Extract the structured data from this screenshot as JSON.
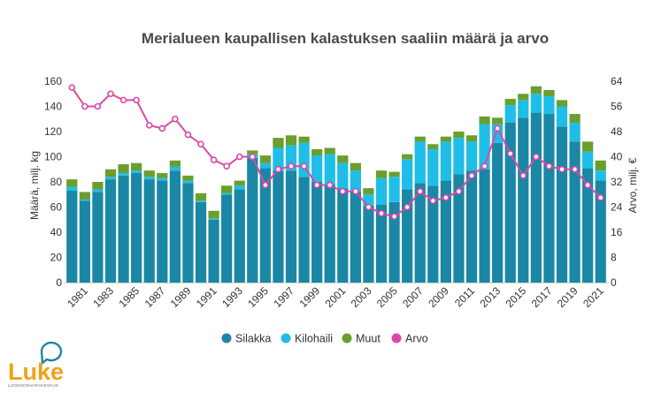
{
  "chart_data": {
    "type": "bar",
    "title": "Merialueen kaupallisen kalastuksen saaliin määrä ja arvo",
    "ylabel": "Määrä, milj. kg",
    "y2label": "Arvo, milj. €",
    "ylim": [
      0,
      160
    ],
    "y2lim": [
      0,
      64
    ],
    "yticks": [
      "0",
      "20",
      "40",
      "60",
      "80",
      "100",
      "120",
      "140",
      "160"
    ],
    "y2ticks": [
      "0",
      "8",
      "16",
      "24",
      "32",
      "40",
      "48",
      "56",
      "64"
    ],
    "stacked": true,
    "x": [
      "1980",
      "1981",
      "1982",
      "1983",
      "1984",
      "1985",
      "1986",
      "1987",
      "1988",
      "1989",
      "1990",
      "1991",
      "1992",
      "1993",
      "1994",
      "1995",
      "1996",
      "1997",
      "1998",
      "1999",
      "2000",
      "2001",
      "2002",
      "2003",
      "2004",
      "2005",
      "2006",
      "2007",
      "2008",
      "2009",
      "2010",
      "2011",
      "2012",
      "2013",
      "2014",
      "2015",
      "2016",
      "2017",
      "2018",
      "2019",
      "2020",
      "2021"
    ],
    "xtick_labels": [
      "1981",
      "1983",
      "1985",
      "1987",
      "1989",
      "1991",
      "1993",
      "1995",
      "1997",
      "1999",
      "2001",
      "2003",
      "2005",
      "2007",
      "2009",
      "2011",
      "2013",
      "2015",
      "2017",
      "2019",
      "2021"
    ],
    "series": [
      {
        "name": "Silakka",
        "color": "#1a87a5",
        "values": [
          73,
          65,
          72,
          82,
          85,
          87,
          82,
          81,
          89,
          79,
          64,
          50,
          70,
          74,
          99,
          91,
          89,
          89,
          84,
          80,
          78,
          75,
          72,
          61,
          62,
          64,
          74,
          79,
          77,
          81,
          86,
          89,
          90,
          111,
          127,
          131,
          135,
          134,
          124,
          112,
          91,
          81
        ]
      },
      {
        "name": "Kilohaili",
        "color": "#1ebee8",
        "values": [
          3,
          1,
          2,
          2,
          2,
          2,
          2,
          2,
          3,
          2,
          1,
          1,
          1,
          3,
          3,
          4,
          18,
          20,
          27,
          21,
          24,
          20,
          17,
          9,
          21,
          20,
          24,
          33,
          29,
          31,
          29,
          23,
          36,
          15,
          14,
          14,
          15,
          14,
          16,
          15,
          13,
          8
        ]
      },
      {
        "name": "Muut",
        "color": "#6a9e2e",
        "values": [
          6,
          6,
          6,
          6,
          7,
          6,
          5,
          4,
          5,
          4,
          6,
          6,
          6,
          4,
          3,
          6,
          8,
          8,
          5,
          5,
          5,
          6,
          6,
          5,
          6,
          4,
          4,
          4,
          4,
          4,
          5,
          5,
          6,
          5,
          5,
          5,
          6,
          5,
          5,
          7,
          8,
          8
        ]
      }
    ],
    "line_series": {
      "name": "Arvo",
      "color": "#d94aa8",
      "axis": "right",
      "values": [
        62,
        56,
        56,
        60,
        58,
        58,
        50,
        49,
        52,
        47,
        44,
        39,
        37,
        40,
        40,
        31,
        36,
        37,
        37,
        31,
        31,
        29,
        29,
        24,
        22,
        21,
        24,
        29,
        26,
        27,
        29,
        34,
        37,
        49,
        41,
        34,
        40,
        37,
        36,
        36,
        31,
        27
      ]
    },
    "legend": {
      "position": "bottom",
      "items": [
        "Silakka",
        "Kilohaili",
        "Muut",
        "Arvo"
      ]
    },
    "grid": false
  },
  "logo": {
    "word": "Luke",
    "subtitle": "LUONNONVARAKESKUS",
    "color": "#f0a21a",
    "accent": "#1a87a5"
  }
}
